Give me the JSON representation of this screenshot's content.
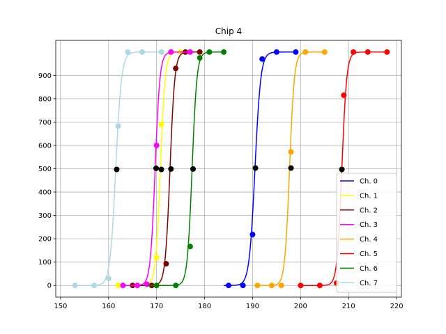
{
  "chart_data": {
    "type": "line",
    "title": "Chip 4",
    "xlabel": "",
    "ylabel": "",
    "xlim": [
      149,
      221
    ],
    "ylim": [
      -50,
      1050
    ],
    "xticks": [
      150,
      160,
      170,
      180,
      190,
      200,
      210,
      220
    ],
    "yticks": [
      0,
      100,
      200,
      300,
      400,
      500,
      600,
      700,
      800,
      900
    ],
    "grid": true,
    "legend_position": "lower-right",
    "series": [
      {
        "name": "Ch. 0",
        "color": "#0000ff",
        "midpoint": 190.5,
        "width": 0.6,
        "x_range": [
          184,
          199
        ],
        "points": [
          [
            185,
            0
          ],
          [
            188,
            0
          ],
          [
            190,
            218
          ],
          [
            192,
            970
          ],
          [
            195,
            1000
          ],
          [
            199,
            1000
          ]
        ]
      },
      {
        "name": "Ch. 1",
        "color": "#ffff00",
        "midpoint": 170.8,
        "width": 0.5,
        "x_range": [
          166,
          175
        ],
        "points": [
          [
            162,
            0
          ],
          [
            166,
            0
          ],
          [
            169,
            0
          ],
          [
            170,
            120
          ],
          [
            171,
            690
          ],
          [
            173,
            1000
          ],
          [
            175,
            1000
          ]
        ]
      },
      {
        "name": "Ch. 2",
        "color": "#800000",
        "midpoint": 172.8,
        "width": 0.5,
        "x_range": [
          163,
          179
        ],
        "points": [
          [
            165,
            0
          ],
          [
            169,
            0
          ],
          [
            172,
            93
          ],
          [
            174,
            930
          ],
          [
            176,
            1000
          ],
          [
            179,
            1000
          ]
        ]
      },
      {
        "name": "Ch. 3",
        "color": "#ff00ff",
        "midpoint": 169.7,
        "width": 0.5,
        "x_range": [
          163,
          177
        ],
        "points": [
          [
            163,
            0
          ],
          [
            166,
            0
          ],
          [
            168,
            5
          ],
          [
            170,
            600
          ],
          [
            173,
            1000
          ],
          [
            177,
            1000
          ]
        ]
      },
      {
        "name": "Ch. 4",
        "color": "#ffa500",
        "midpoint": 197.7,
        "width": 0.5,
        "x_range": [
          191,
          205
        ],
        "points": [
          [
            191,
            0
          ],
          [
            194,
            0
          ],
          [
            196,
            0
          ],
          [
            198,
            572
          ],
          [
            201,
            1000
          ],
          [
            205,
            1000
          ]
        ]
      },
      {
        "name": "Ch. 5",
        "color": "#ff0000",
        "midpoint": 208.6,
        "width": 0.5,
        "x_range": [
          200,
          218
        ],
        "points": [
          [
            200,
            0
          ],
          [
            204,
            0
          ],
          [
            207.5,
            10
          ],
          [
            209,
            815
          ],
          [
            211,
            1000
          ],
          [
            214,
            1000
          ],
          [
            218,
            1000
          ]
        ]
      },
      {
        "name": "Ch. 6",
        "color": "#008000",
        "midpoint": 177.4,
        "width": 0.5,
        "x_range": [
          168,
          184
        ],
        "points": [
          [
            170,
            0
          ],
          [
            174,
            0
          ],
          [
            177,
            167
          ],
          [
            179,
            975
          ],
          [
            181,
            1000
          ],
          [
            184,
            1000
          ]
        ]
      },
      {
        "name": "Ch. 7",
        "color": "#add8e6",
        "midpoint": 161.5,
        "width": 0.6,
        "x_range": [
          153,
          171
        ],
        "points": [
          [
            153,
            0
          ],
          [
            157,
            0
          ],
          [
            160,
            30
          ],
          [
            162,
            683
          ],
          [
            164,
            1000
          ],
          [
            167,
            1000
          ],
          [
            171,
            1000
          ]
        ]
      }
    ],
    "half_points": {
      "color": "#000000",
      "points": [
        [
          161.7,
          497
        ],
        [
          169.9,
          502
        ],
        [
          171,
          497
        ],
        [
          173,
          499
        ],
        [
          177.6,
          499
        ],
        [
          190.6,
          503
        ],
        [
          198,
          503
        ],
        [
          208.6,
          497
        ]
      ]
    }
  }
}
